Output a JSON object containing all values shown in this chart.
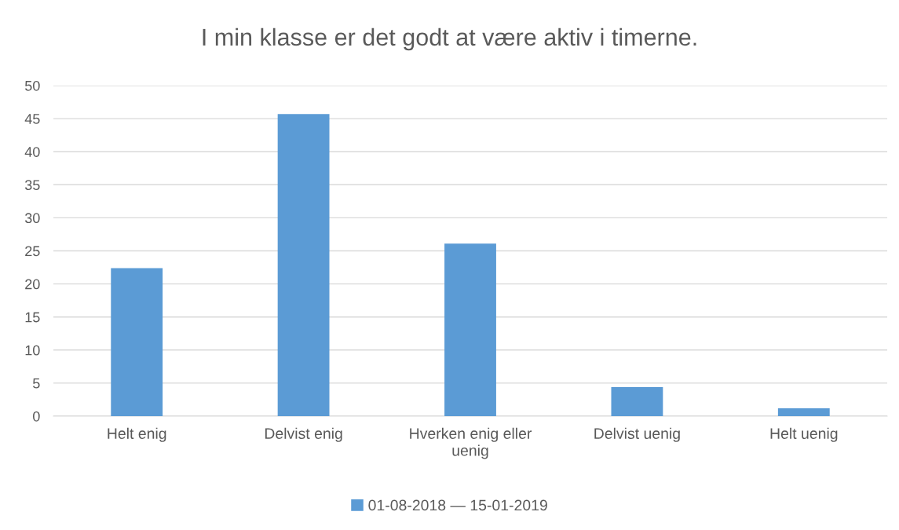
{
  "chart_data": {
    "type": "bar",
    "title": "I min klasse er det godt at være aktiv i timerne.",
    "categories": [
      "Helt enig",
      "Delvist enig",
      "Hverken enig eller uenig",
      "Delvist uenig",
      "Helt uenig"
    ],
    "series": [
      {
        "name": "01-08-2018 — 15-01-2019",
        "color": "#5b9bd5",
        "values": [
          22.4,
          45.7,
          26.1,
          4.4,
          1.2
        ]
      }
    ],
    "ylim": [
      0,
      50
    ],
    "yticks": [
      0,
      5,
      10,
      15,
      20,
      25,
      30,
      35,
      40,
      45,
      50
    ],
    "grid": "y",
    "legend": "bottom"
  }
}
